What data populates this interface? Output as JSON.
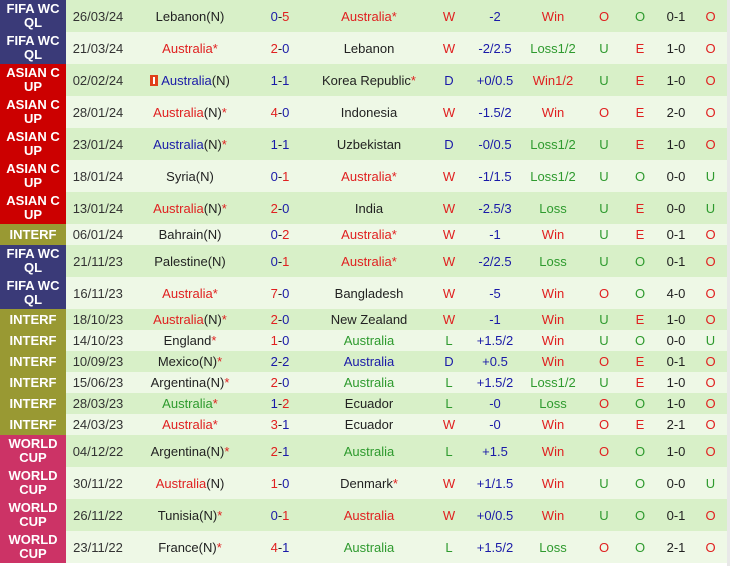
{
  "colors": {
    "fifa": "#3a3a78",
    "asian": "#cc0000",
    "interf": "#999933",
    "world": "#cc3366",
    "win": "#e02020",
    "draw": "#1a1aa8",
    "loss": "#2e9a2e"
  },
  "rows": [
    {
      "comp": "FIFA WCQL",
      "ck": "fifa",
      "date": "26/03/24",
      "home": "Lebanon",
      "hn": "(N)",
      "hs": "",
      "hc": "black",
      "score": "0-5",
      "away": "Australia",
      "an": "",
      "as": "*",
      "ac": "red",
      "wdl": "W",
      "hcap": "-2",
      "res": "Win",
      "ou": "O",
      "oe": "O",
      "ht": "0-1",
      "ou2": "O"
    },
    {
      "comp": "FIFA WCQL",
      "ck": "fifa",
      "date": "21/03/24",
      "home": "Australia",
      "hn": "",
      "hs": "*",
      "hc": "red",
      "score": "2-0",
      "away": "Lebanon",
      "an": "",
      "as": "",
      "ac": "black",
      "wdl": "W",
      "hcap": "-2/2.5",
      "res": "Loss1/2",
      "ou": "U",
      "oe": "E",
      "ht": "1-0",
      "ou2": "O"
    },
    {
      "comp": "ASIAN CUP",
      "ck": "asian",
      "date": "02/02/24",
      "icon": "red-card-icon",
      "home": "Australia",
      "hn": "(N)",
      "hs": "",
      "hc": "blue",
      "score": "1-1",
      "away": "Korea Republic",
      "an": "",
      "as": "*",
      "ac": "black",
      "wdl": "D",
      "hcap": "+0/0.5",
      "res": "Win1/2",
      "ou": "U",
      "oe": "E",
      "ht": "1-0",
      "ou2": "O"
    },
    {
      "comp": "ASIAN CUP",
      "ck": "asian",
      "date": "28/01/24",
      "home": "Australia",
      "hn": "(N)",
      "hs": "*",
      "hc": "red",
      "score": "4-0",
      "away": "Indonesia",
      "an": "",
      "as": "",
      "ac": "black",
      "wdl": "W",
      "hcap": "-1.5/2",
      "res": "Win",
      "ou": "O",
      "oe": "E",
      "ht": "2-0",
      "ou2": "O"
    },
    {
      "comp": "ASIAN CUP",
      "ck": "asian",
      "date": "23/01/24",
      "home": "Australia",
      "hn": "(N)",
      "hs": "*",
      "hc": "blue",
      "score": "1-1",
      "away": "Uzbekistan",
      "an": "",
      "as": "",
      "ac": "black",
      "wdl": "D",
      "hcap": "-0/0.5",
      "res": "Loss1/2",
      "ou": "U",
      "oe": "E",
      "ht": "1-0",
      "ou2": "O"
    },
    {
      "comp": "ASIAN CUP",
      "ck": "asian",
      "date": "18/01/24",
      "home": "Syria",
      "hn": "(N)",
      "hs": "",
      "hc": "black",
      "score": "0-1",
      "away": "Australia",
      "an": "",
      "as": "*",
      "ac": "red",
      "wdl": "W",
      "hcap": "-1/1.5",
      "res": "Loss1/2",
      "ou": "U",
      "oe": "O",
      "ht": "0-0",
      "ou2": "U"
    },
    {
      "comp": "ASIAN CUP",
      "ck": "asian",
      "date": "13/01/24",
      "home": "Australia",
      "hn": "(N)",
      "hs": "*",
      "hc": "red",
      "score": "2-0",
      "away": "India",
      "an": "",
      "as": "",
      "ac": "black",
      "wdl": "W",
      "hcap": "-2.5/3",
      "res": "Loss",
      "ou": "U",
      "oe": "E",
      "ht": "0-0",
      "ou2": "U"
    },
    {
      "comp": "INTERF",
      "ck": "interf",
      "date": "06/01/24",
      "home": "Bahrain",
      "hn": "(N)",
      "hs": "",
      "hc": "black",
      "score": "0-2",
      "away": "Australia",
      "an": "",
      "as": "*",
      "ac": "red",
      "wdl": "W",
      "hcap": "-1",
      "res": "Win",
      "ou": "U",
      "oe": "E",
      "ht": "0-1",
      "ou2": "O"
    },
    {
      "comp": "FIFA WCQL",
      "ck": "fifa",
      "date": "21/11/23",
      "home": "Palestine",
      "hn": "(N)",
      "hs": "",
      "hc": "black",
      "score": "0-1",
      "away": "Australia",
      "an": "",
      "as": "*",
      "ac": "red",
      "wdl": "W",
      "hcap": "-2/2.5",
      "res": "Loss",
      "ou": "U",
      "oe": "O",
      "ht": "0-1",
      "ou2": "O"
    },
    {
      "comp": "FIFA WCQL",
      "ck": "fifa",
      "date": "16/11/23",
      "home": "Australia",
      "hn": "",
      "hs": "*",
      "hc": "red",
      "score": "7-0",
      "away": "Bangladesh",
      "an": "",
      "as": "",
      "ac": "black",
      "wdl": "W",
      "hcap": "-5",
      "res": "Win",
      "ou": "O",
      "oe": "O",
      "ht": "4-0",
      "ou2": "O"
    },
    {
      "comp": "INTERF",
      "ck": "interf",
      "date": "18/10/23",
      "home": "Australia",
      "hn": "(N)",
      "hs": "*",
      "hc": "red",
      "score": "2-0",
      "away": "New Zealand",
      "an": "",
      "as": "",
      "ac": "black",
      "wdl": "W",
      "hcap": "-1",
      "res": "Win",
      "ou": "U",
      "oe": "E",
      "ht": "1-0",
      "ou2": "O"
    },
    {
      "comp": "INTERF",
      "ck": "interf",
      "date": "14/10/23",
      "home": "England",
      "hn": "",
      "hs": "*",
      "hc": "black",
      "score": "1-0",
      "away": "Australia",
      "an": "",
      "as": "",
      "ac": "green",
      "wdl": "L",
      "hcap": "+1.5/2",
      "res": "Win",
      "ou": "U",
      "oe": "O",
      "ht": "0-0",
      "ou2": "U"
    },
    {
      "comp": "INTERF",
      "ck": "interf",
      "date": "10/09/23",
      "home": "Mexico",
      "hn": "(N)",
      "hs": "*",
      "hc": "black",
      "score": "2-2",
      "away": "Australia",
      "an": "",
      "as": "",
      "ac": "blue",
      "wdl": "D",
      "hcap": "+0.5",
      "res": "Win",
      "ou": "O",
      "oe": "E",
      "ht": "0-1",
      "ou2": "O"
    },
    {
      "comp": "INTERF",
      "ck": "interf",
      "date": "15/06/23",
      "home": "Argentina",
      "hn": "(N)",
      "hs": "*",
      "hc": "black",
      "score": "2-0",
      "away": "Australia",
      "an": "",
      "as": "",
      "ac": "green",
      "wdl": "L",
      "hcap": "+1.5/2",
      "res": "Loss1/2",
      "ou": "U",
      "oe": "E",
      "ht": "1-0",
      "ou2": "O"
    },
    {
      "comp": "INTERF",
      "ck": "interf",
      "date": "28/03/23",
      "home": "Australia",
      "hn": "",
      "hs": "*",
      "hc": "green",
      "score": "1-2",
      "away": "Ecuador",
      "an": "",
      "as": "",
      "ac": "black",
      "wdl": "L",
      "hcap": "-0",
      "res": "Loss",
      "ou": "O",
      "oe": "O",
      "ht": "1-0",
      "ou2": "O"
    },
    {
      "comp": "INTERF",
      "ck": "interf",
      "date": "24/03/23",
      "home": "Australia",
      "hn": "",
      "hs": "*",
      "hc": "red",
      "score": "3-1",
      "away": "Ecuador",
      "an": "",
      "as": "",
      "ac": "black",
      "wdl": "W",
      "hcap": "-0",
      "res": "Win",
      "ou": "O",
      "oe": "E",
      "ht": "2-1",
      "ou2": "O"
    },
    {
      "comp": "WORLD CUP",
      "ck": "world",
      "date": "04/12/22",
      "home": "Argentina",
      "hn": "(N)",
      "hs": "*",
      "hc": "black",
      "score": "2-1",
      "away": "Australia",
      "an": "",
      "as": "",
      "ac": "green",
      "wdl": "L",
      "hcap": "+1.5",
      "res": "Win",
      "ou": "O",
      "oe": "O",
      "ht": "1-0",
      "ou2": "O"
    },
    {
      "comp": "WORLD CUP",
      "ck": "world",
      "date": "30/11/22",
      "home": "Australia",
      "hn": "(N)",
      "hs": "",
      "hc": "red",
      "score": "1-0",
      "away": "Denmark",
      "an": "",
      "as": "*",
      "ac": "black",
      "wdl": "W",
      "hcap": "+1/1.5",
      "res": "Win",
      "ou": "U",
      "oe": "O",
      "ht": "0-0",
      "ou2": "U"
    },
    {
      "comp": "WORLD CUP",
      "ck": "world",
      "date": "26/11/22",
      "home": "Tunisia",
      "hn": "(N)",
      "hs": "*",
      "hc": "black",
      "score": "0-1",
      "away": "Australia",
      "an": "",
      "as": "",
      "ac": "red",
      "wdl": "W",
      "hcap": "+0/0.5",
      "res": "Win",
      "ou": "U",
      "oe": "O",
      "ht": "0-1",
      "ou2": "O"
    },
    {
      "comp": "WORLD CUP",
      "ck": "world",
      "date": "23/11/22",
      "home": "France",
      "hn": "(N)",
      "hs": "*",
      "hc": "black",
      "score": "4-1",
      "away": "Australia",
      "an": "",
      "as": "",
      "ac": "green",
      "wdl": "L",
      "hcap": "+1.5/2",
      "res": "Loss",
      "ou": "O",
      "oe": "O",
      "ht": "2-1",
      "ou2": "O"
    }
  ]
}
